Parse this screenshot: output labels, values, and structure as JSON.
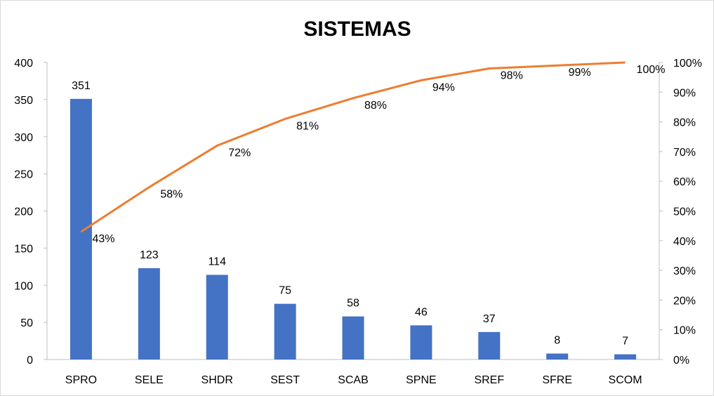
{
  "chart_data": {
    "type": "bar",
    "title": "SISTEMAS",
    "categories": [
      "SPRO",
      "SELE",
      "SHDR",
      "SEST",
      "SCAB",
      "SPNE",
      "SREF",
      "SFRE",
      "SCOM"
    ],
    "series": [
      {
        "type": "bar",
        "axis": "left",
        "color": "#4472c4",
        "values": [
          351,
          123,
          114,
          75,
          58,
          46,
          37,
          8,
          7
        ],
        "data_labels": [
          "351",
          "123",
          "114",
          "75",
          "58",
          "46",
          "37",
          "8",
          "7"
        ]
      },
      {
        "type": "line",
        "axis": "right",
        "color": "#ed7d31",
        "values": [
          0.43,
          0.58,
          0.72,
          0.81,
          0.88,
          0.94,
          0.98,
          0.99,
          1.0
        ],
        "data_labels": [
          "43%",
          "58%",
          "72%",
          "81%",
          "88%",
          "94%",
          "98%",
          "99%",
          "100%"
        ]
      }
    ],
    "left_axis": {
      "ylim": [
        0,
        400
      ],
      "ticks": [
        0,
        50,
        100,
        150,
        200,
        250,
        300,
        350,
        400
      ],
      "tick_labels": [
        "0",
        "50",
        "100",
        "150",
        "200",
        "250",
        "300",
        "350",
        "400"
      ]
    },
    "right_axis": {
      "ylim": [
        0,
        1
      ],
      "ticks": [
        0,
        0.1,
        0.2,
        0.3,
        0.4,
        0.5,
        0.6,
        0.7,
        0.8,
        0.9,
        1.0
      ],
      "tick_labels": [
        "0%",
        "10%",
        "20%",
        "30%",
        "40%",
        "50%",
        "60%",
        "70%",
        "80%",
        "90%",
        "100%"
      ]
    },
    "grid": false,
    "legend": "none"
  }
}
